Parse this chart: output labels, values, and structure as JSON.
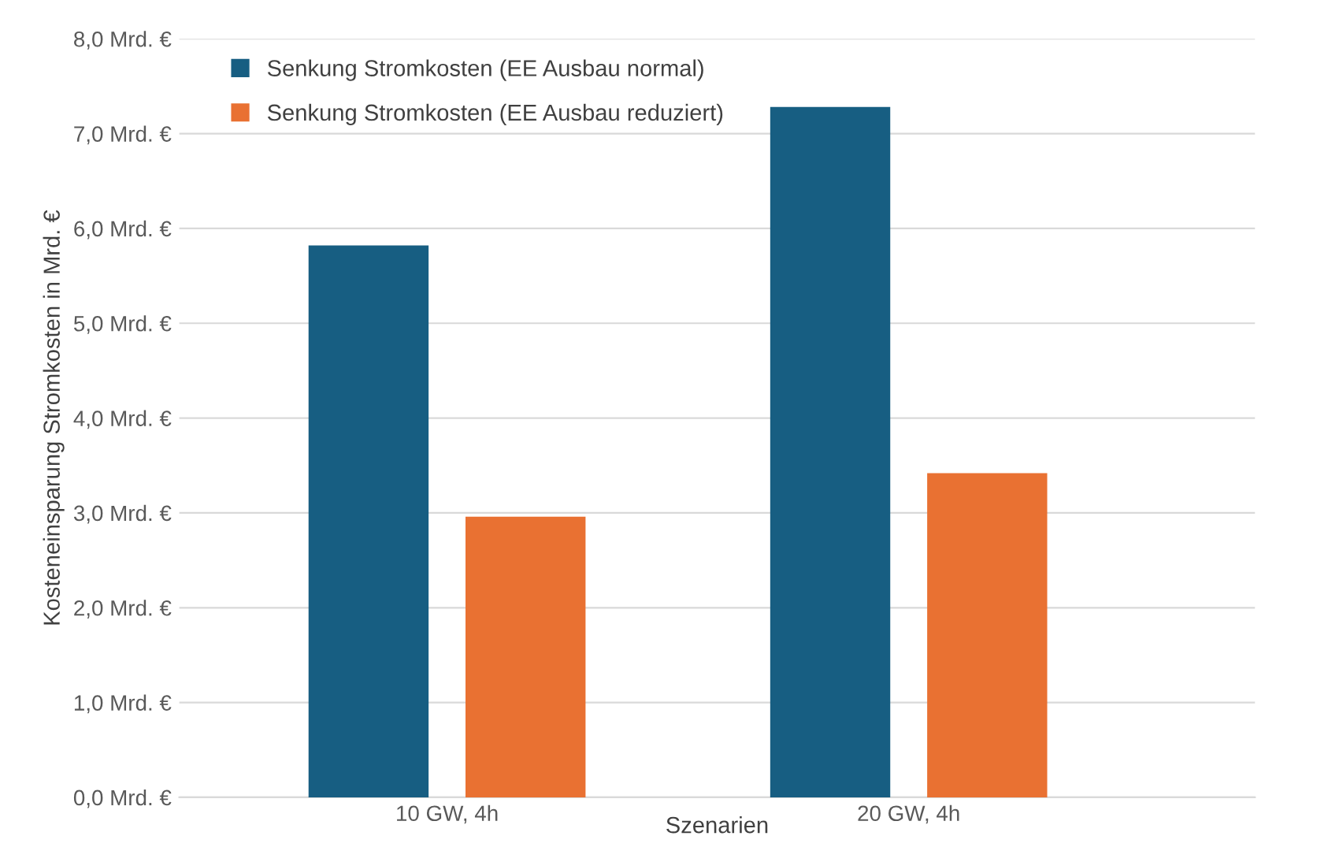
{
  "chart_data": {
    "type": "bar",
    "ylabel": "Kosteneinsparung Stromkosten in Mrd. €",
    "xlabel": "Szenarien",
    "categories": [
      "10 GW, 4h",
      "20 GW, 4h"
    ],
    "series": [
      {
        "name": "Senkung Stromkosten (EE Ausbau normal)",
        "color": "#175e82",
        "values": [
          5.82,
          7.28
        ]
      },
      {
        "name": "Senkung Stromkosten (EE Ausbau reduziert)",
        "color": "#e97132",
        "values": [
          2.96,
          3.42
        ]
      }
    ],
    "ylim": [
      0,
      8
    ],
    "yticks": [
      {
        "value": 0,
        "label": "0,0 Mrd. €"
      },
      {
        "value": 1,
        "label": "1,0 Mrd. €"
      },
      {
        "value": 2,
        "label": "2,0 Mrd. €"
      },
      {
        "value": 3,
        "label": "3,0 Mrd. €"
      },
      {
        "value": 4,
        "label": "4,0 Mrd. €"
      },
      {
        "value": 5,
        "label": "5,0 Mrd. €"
      },
      {
        "value": 6,
        "label": "6,0 Mrd. €"
      },
      {
        "value": 7,
        "label": "7,0 Mrd. €"
      },
      {
        "value": 8,
        "label": "8,0 Mrd. €"
      }
    ],
    "grid": "y",
    "legend": "top left"
  }
}
